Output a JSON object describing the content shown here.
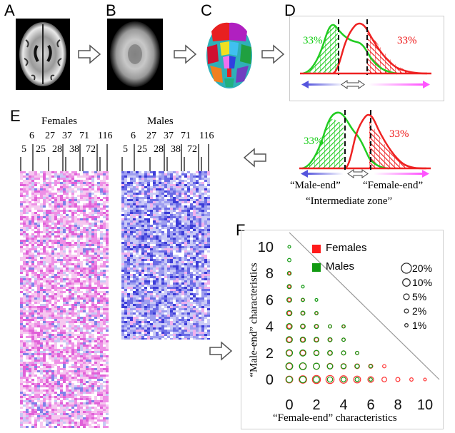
{
  "panels": {
    "a": "A",
    "b": "B",
    "c": "C",
    "d": "D",
    "e": "E",
    "f": "F"
  },
  "distribution": {
    "left_pct": "33%",
    "right_pct": "33%",
    "male_end": "“Male-end”",
    "female_end": "“Female-end”",
    "intermediate": "“Intermediate zone”"
  },
  "heatmap": {
    "females_title": "Females",
    "males_title": "Males",
    "ticks_top": [
      "6",
      "27",
      "37",
      "71",
      "116"
    ],
    "ticks_bottom": [
      "5",
      "25",
      "28",
      "38",
      "72"
    ]
  },
  "chart_data": {
    "type": "scatter",
    "title": "",
    "xlabel": "“Female-end”  characteristics",
    "ylabel": "“Male-end”  characteristics",
    "xlim": [
      0,
      10
    ],
    "ylim": [
      0,
      10
    ],
    "xticks": [
      "0",
      "2",
      "4",
      "6",
      "8",
      "10"
    ],
    "yticks": [
      "0",
      "2",
      "4",
      "6",
      "8",
      "10"
    ],
    "legend": [
      {
        "name": "Females",
        "color": "#ff1a1a"
      },
      {
        "name": "Males",
        "color": "#119911"
      }
    ],
    "size_legend": [
      "20%",
      "10%",
      "5%",
      "2%",
      "1%"
    ],
    "size_legend_pct": [
      20,
      10,
      5,
      2,
      1
    ],
    "series": [
      {
        "name": "Females",
        "color": "#ff3333",
        "points": [
          {
            "x": 0,
            "y": 0,
            "pct": 8
          },
          {
            "x": 1,
            "y": 0,
            "pct": 10
          },
          {
            "x": 2,
            "y": 0,
            "pct": 12
          },
          {
            "x": 3,
            "y": 0,
            "pct": 12
          },
          {
            "x": 4,
            "y": 0,
            "pct": 10
          },
          {
            "x": 5,
            "y": 0,
            "pct": 8
          },
          {
            "x": 6,
            "y": 0,
            "pct": 5
          },
          {
            "x": 7,
            "y": 0,
            "pct": 3
          },
          {
            "x": 8,
            "y": 0,
            "pct": 2
          },
          {
            "x": 9,
            "y": 0,
            "pct": 1
          },
          {
            "x": 10,
            "y": 0,
            "pct": 0.5
          },
          {
            "x": 0,
            "y": 1,
            "pct": 6
          },
          {
            "x": 1,
            "y": 1,
            "pct": 7
          },
          {
            "x": 2,
            "y": 1,
            "pct": 6
          },
          {
            "x": 3,
            "y": 1,
            "pct": 5
          },
          {
            "x": 4,
            "y": 1,
            "pct": 4
          },
          {
            "x": 5,
            "y": 1,
            "pct": 3
          },
          {
            "x": 6,
            "y": 1,
            "pct": 2
          },
          {
            "x": 7,
            "y": 1,
            "pct": 1
          },
          {
            "x": 0,
            "y": 2,
            "pct": 5
          },
          {
            "x": 1,
            "y": 2,
            "pct": 4
          },
          {
            "x": 2,
            "y": 2,
            "pct": 3
          },
          {
            "x": 3,
            "y": 2,
            "pct": 2
          },
          {
            "x": 4,
            "y": 2,
            "pct": 2
          },
          {
            "x": 5,
            "y": 2,
            "pct": 1
          },
          {
            "x": 0,
            "y": 3,
            "pct": 3
          },
          {
            "x": 1,
            "y": 3,
            "pct": 2
          },
          {
            "x": 2,
            "y": 3,
            "pct": 1.5
          },
          {
            "x": 3,
            "y": 3,
            "pct": 1
          },
          {
            "x": 4,
            "y": 3,
            "pct": 1
          },
          {
            "x": 0,
            "y": 4,
            "pct": 2
          },
          {
            "x": 1,
            "y": 4,
            "pct": 1.5
          },
          {
            "x": 2,
            "y": 4,
            "pct": 1
          },
          {
            "x": 3,
            "y": 4,
            "pct": 1
          },
          {
            "x": 4,
            "y": 4,
            "pct": 0.5
          },
          {
            "x": 0,
            "y": 5,
            "pct": 1.5
          },
          {
            "x": 1,
            "y": 5,
            "pct": 1
          },
          {
            "x": 2,
            "y": 5,
            "pct": 0.5
          },
          {
            "x": 0,
            "y": 6,
            "pct": 1
          },
          {
            "x": 1,
            "y": 6,
            "pct": 0.5
          },
          {
            "x": 0,
            "y": 7,
            "pct": 0.5
          },
          {
            "x": 0,
            "y": 8,
            "pct": 0.3
          }
        ]
      },
      {
        "name": "Males",
        "color": "#119911",
        "points": [
          {
            "x": 0,
            "y": 0,
            "pct": 6
          },
          {
            "x": 1,
            "y": 0,
            "pct": 7
          },
          {
            "x": 2,
            "y": 0,
            "pct": 6
          },
          {
            "x": 3,
            "y": 0,
            "pct": 4
          },
          {
            "x": 4,
            "y": 0,
            "pct": 3
          },
          {
            "x": 5,
            "y": 0,
            "pct": 2
          },
          {
            "x": 6,
            "y": 0,
            "pct": 1
          },
          {
            "x": 0,
            "y": 1,
            "pct": 8
          },
          {
            "x": 1,
            "y": 1,
            "pct": 8
          },
          {
            "x": 2,
            "y": 1,
            "pct": 6
          },
          {
            "x": 3,
            "y": 1,
            "pct": 4
          },
          {
            "x": 4,
            "y": 1,
            "pct": 3
          },
          {
            "x": 5,
            "y": 1,
            "pct": 2
          },
          {
            "x": 6,
            "y": 1,
            "pct": 1
          },
          {
            "x": 0,
            "y": 2,
            "pct": 7
          },
          {
            "x": 1,
            "y": 2,
            "pct": 6
          },
          {
            "x": 2,
            "y": 2,
            "pct": 4
          },
          {
            "x": 3,
            "y": 2,
            "pct": 3
          },
          {
            "x": 4,
            "y": 2,
            "pct": 2
          },
          {
            "x": 5,
            "y": 2,
            "pct": 1
          },
          {
            "x": 0,
            "y": 3,
            "pct": 6
          },
          {
            "x": 1,
            "y": 3,
            "pct": 4
          },
          {
            "x": 2,
            "y": 3,
            "pct": 3
          },
          {
            "x": 3,
            "y": 3,
            "pct": 2
          },
          {
            "x": 4,
            "y": 3,
            "pct": 1
          },
          {
            "x": 0,
            "y": 4,
            "pct": 5
          },
          {
            "x": 1,
            "y": 4,
            "pct": 3
          },
          {
            "x": 2,
            "y": 4,
            "pct": 2
          },
          {
            "x": 3,
            "y": 4,
            "pct": 1
          },
          {
            "x": 4,
            "y": 4,
            "pct": 1
          },
          {
            "x": 0,
            "y": 5,
            "pct": 4
          },
          {
            "x": 1,
            "y": 5,
            "pct": 2
          },
          {
            "x": 2,
            "y": 5,
            "pct": 1
          },
          {
            "x": 0,
            "y": 6,
            "pct": 3
          },
          {
            "x": 1,
            "y": 6,
            "pct": 1
          },
          {
            "x": 2,
            "y": 6,
            "pct": 0.5
          },
          {
            "x": 0,
            "y": 7,
            "pct": 2
          },
          {
            "x": 1,
            "y": 7,
            "pct": 0.5
          },
          {
            "x": 0,
            "y": 8,
            "pct": 1.5
          },
          {
            "x": 0,
            "y": 9,
            "pct": 1
          },
          {
            "x": 0,
            "y": 10,
            "pct": 0.5
          }
        ]
      }
    ]
  }
}
